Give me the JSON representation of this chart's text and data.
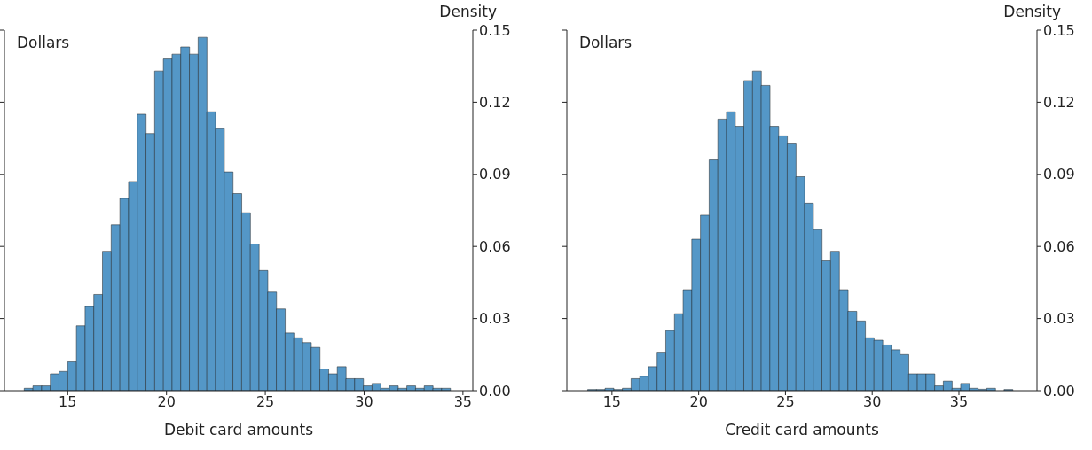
{
  "chart_data": [
    {
      "type": "histogram",
      "xlabel": "Debit card amounts",
      "ylabel": "Density",
      "annotations": [
        "Dollars"
      ],
      "color": "#5497c7",
      "bins": [
        12.8,
        13.24,
        13.68,
        14.12,
        14.56,
        15.0,
        15.44,
        15.88,
        16.32,
        16.76,
        17.2,
        17.64,
        18.08,
        18.52,
        18.96,
        19.4,
        19.84,
        20.28,
        20.72,
        21.16,
        21.6,
        22.04,
        22.48,
        22.92,
        23.36,
        23.8,
        24.24,
        24.68,
        25.12,
        25.56,
        26.0,
        26.44,
        26.88,
        27.32,
        27.76,
        28.2,
        28.64,
        29.08,
        29.52,
        29.96,
        30.4,
        30.84,
        31.28,
        31.72,
        32.16,
        32.6,
        33.04,
        33.48,
        33.92,
        34.36
      ],
      "values": [
        0.001,
        0.002,
        0.002,
        0.007,
        0.008,
        0.012,
        0.027,
        0.035,
        0.04,
        0.058,
        0.069,
        0.08,
        0.087,
        0.115,
        0.107,
        0.133,
        0.138,
        0.14,
        0.143,
        0.14,
        0.147,
        0.116,
        0.109,
        0.091,
        0.082,
        0.074,
        0.061,
        0.05,
        0.041,
        0.034,
        0.024,
        0.022,
        0.02,
        0.018,
        0.009,
        0.007,
        0.01,
        0.005,
        0.005,
        0.002,
        0.003,
        0.001,
        0.002,
        0.001,
        0.002,
        0.001,
        0.002,
        0.001,
        0.001
      ],
      "xlim": [
        11.8,
        35.5
      ],
      "xticks": [
        15,
        20,
        25,
        30,
        35
      ],
      "ylim": [
        0,
        0.15
      ],
      "yticks": [
        {
          "value": 0,
          "label": "0.00"
        },
        0.03,
        0.06,
        0.09,
        0.12,
        0.15
      ]
    },
    {
      "type": "histogram",
      "xlabel": "Credit card amounts",
      "ylabel": "Density",
      "annotations": [
        "Dollars"
      ],
      "color": "#5497c7",
      "bins": [
        13.6,
        14.1,
        14.6,
        15.1,
        15.6,
        16.1,
        16.6,
        17.1,
        17.6,
        18.1,
        18.6,
        19.1,
        19.6,
        20.1,
        20.6,
        21.1,
        21.6,
        22.1,
        22.6,
        23.1,
        23.6,
        24.1,
        24.6,
        25.1,
        25.6,
        26.1,
        26.6,
        27.1,
        27.6,
        28.1,
        28.6,
        29.1,
        29.6,
        30.1,
        30.6,
        31.1,
        31.6,
        32.1,
        32.6,
        33.1,
        33.6,
        34.1,
        34.6,
        35.1,
        35.6,
        36.1,
        36.6,
        37.1,
        37.6,
        38.1
      ],
      "values": [
        0.0005,
        0.0005,
        0.001,
        0.0005,
        0.001,
        0.005,
        0.006,
        0.01,
        0.016,
        0.025,
        0.032,
        0.042,
        0.063,
        0.073,
        0.096,
        0.113,
        0.116,
        0.11,
        0.129,
        0.133,
        0.127,
        0.11,
        0.106,
        0.103,
        0.089,
        0.078,
        0.067,
        0.054,
        0.058,
        0.042,
        0.033,
        0.029,
        0.022,
        0.021,
        0.019,
        0.017,
        0.015,
        0.007,
        0.007,
        0.007,
        0.002,
        0.004,
        0.001,
        0.003,
        0.001,
        0.0006,
        0.001,
        0,
        0.0005
      ],
      "xlim": [
        12.4,
        39.5
      ],
      "xticks": [
        15,
        20,
        25,
        30,
        35
      ],
      "ylim": [
        0,
        0.15
      ],
      "yticks": [
        {
          "value": 0,
          "label": "0.00"
        },
        0.03,
        0.06,
        0.09,
        0.12,
        0.15
      ]
    }
  ]
}
